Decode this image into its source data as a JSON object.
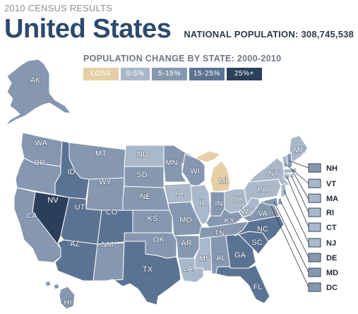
{
  "header": {
    "eyebrow": "2010 CENSUS RESULTS",
    "title": "United States",
    "national_population_label": "NATIONAL POPULATION:",
    "national_population_value": "308,745,538",
    "subtitle": "POPULATION CHANGE BY STATE: 2000-2010"
  },
  "colors": {
    "loss": "#e6cfa6",
    "c0_5": "#a9b8ca",
    "c5_15": "#8698b0",
    "c15_25": "#5b7393",
    "c25plus": "#2b3f5b",
    "outline": "#ffffff"
  },
  "legend": [
    {
      "label": "LOSS",
      "category": "loss"
    },
    {
      "label": "0-5%",
      "category": "c0_5"
    },
    {
      "label": "5-15%",
      "category": "c5_15"
    },
    {
      "label": "15-25%",
      "category": "c15_25"
    },
    {
      "label": "25%+",
      "category": "c25plus"
    }
  ],
  "states": [
    {
      "abbr": "AK",
      "category": "c5_15"
    },
    {
      "abbr": "HI",
      "category": "c5_15"
    },
    {
      "abbr": "WA",
      "category": "c5_15"
    },
    {
      "abbr": "OR",
      "category": "c5_15"
    },
    {
      "abbr": "CA",
      "category": "c5_15"
    },
    {
      "abbr": "NV",
      "category": "c25plus"
    },
    {
      "abbr": "ID",
      "category": "c15_25"
    },
    {
      "abbr": "UT",
      "category": "c15_25"
    },
    {
      "abbr": "AZ",
      "category": "c15_25"
    },
    {
      "abbr": "MT",
      "category": "c5_15"
    },
    {
      "abbr": "WY",
      "category": "c5_15"
    },
    {
      "abbr": "CO",
      "category": "c15_25"
    },
    {
      "abbr": "NM",
      "category": "c5_15"
    },
    {
      "abbr": "ND",
      "category": "c0_5"
    },
    {
      "abbr": "SD",
      "category": "c5_15"
    },
    {
      "abbr": "NE",
      "category": "c5_15"
    },
    {
      "abbr": "KS",
      "category": "c5_15"
    },
    {
      "abbr": "OK",
      "category": "c5_15"
    },
    {
      "abbr": "TX",
      "category": "c15_25"
    },
    {
      "abbr": "MN",
      "category": "c5_15"
    },
    {
      "abbr": "IA",
      "category": "c0_5"
    },
    {
      "abbr": "MO",
      "category": "c5_15"
    },
    {
      "abbr": "AR",
      "category": "c5_15"
    },
    {
      "abbr": "LA",
      "category": "c0_5"
    },
    {
      "abbr": "WI",
      "category": "c5_15"
    },
    {
      "abbr": "IL",
      "category": "c0_5"
    },
    {
      "abbr": "MI",
      "category": "loss"
    },
    {
      "abbr": "IN",
      "category": "c5_15"
    },
    {
      "abbr": "OH",
      "category": "c0_5"
    },
    {
      "abbr": "KY",
      "category": "c5_15"
    },
    {
      "abbr": "TN",
      "category": "c5_15"
    },
    {
      "abbr": "MS",
      "category": "c0_5"
    },
    {
      "abbr": "AL",
      "category": "c5_15"
    },
    {
      "abbr": "GA",
      "category": "c15_25"
    },
    {
      "abbr": "FL",
      "category": "c15_25"
    },
    {
      "abbr": "SC",
      "category": "c15_25"
    },
    {
      "abbr": "NC",
      "category": "c15_25"
    },
    {
      "abbr": "VA",
      "category": "c5_15"
    },
    {
      "abbr": "WV",
      "category": "c0_5"
    },
    {
      "abbr": "PA",
      "category": "c0_5"
    },
    {
      "abbr": "NY",
      "category": "c0_5"
    },
    {
      "abbr": "ME",
      "category": "c0_5"
    }
  ],
  "small_states": [
    {
      "abbr": "NH",
      "category": "c5_15"
    },
    {
      "abbr": "VT",
      "category": "c0_5"
    },
    {
      "abbr": "MA",
      "category": "c0_5"
    },
    {
      "abbr": "RI",
      "category": "c0_5"
    },
    {
      "abbr": "CT",
      "category": "c0_5"
    },
    {
      "abbr": "NJ",
      "category": "c0_5"
    },
    {
      "abbr": "DE",
      "category": "c5_15"
    },
    {
      "abbr": "MD",
      "category": "c5_15"
    },
    {
      "abbr": "DC",
      "category": "c5_15"
    }
  ]
}
